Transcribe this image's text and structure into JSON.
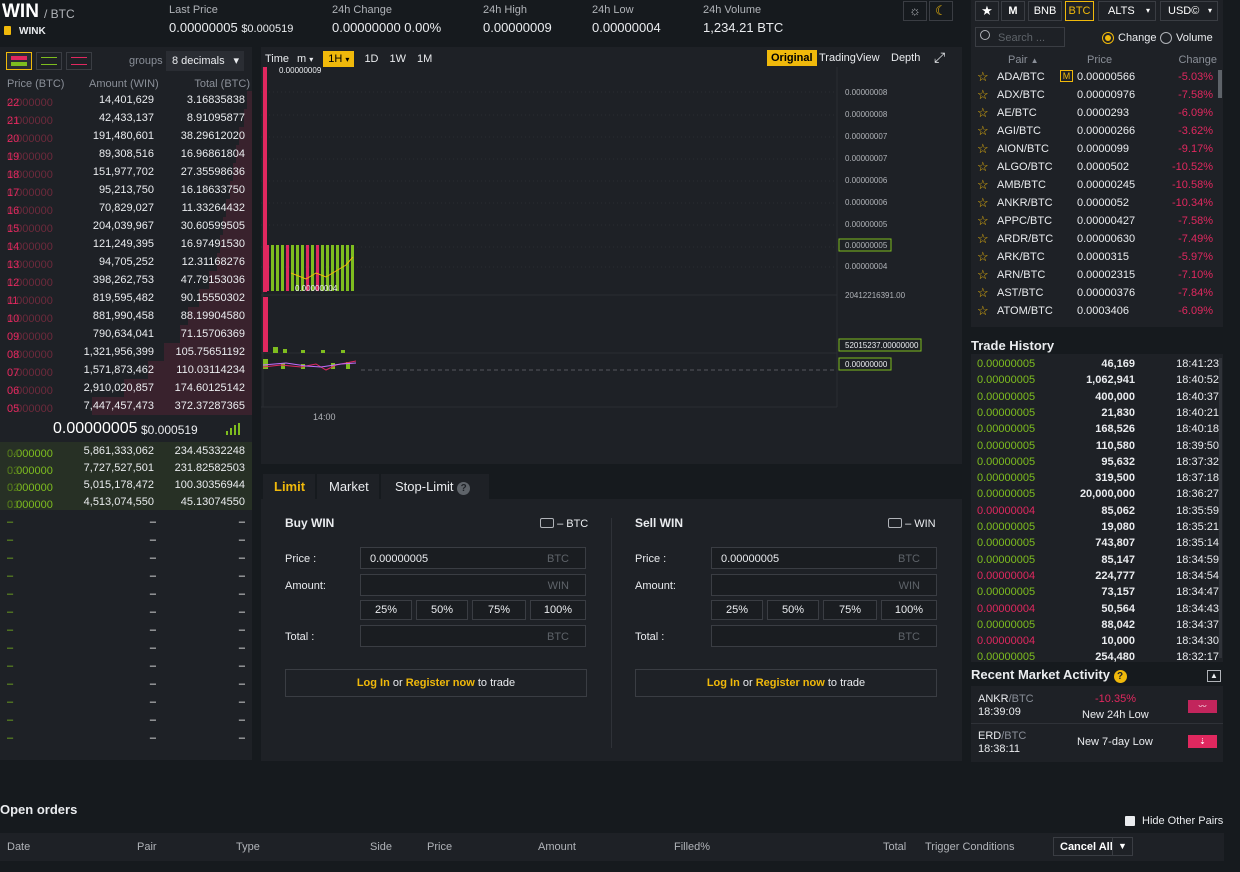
{
  "header": {
    "pair": "WIN",
    "quote": "/ BTC",
    "token_name": "WINK",
    "stats": [
      {
        "label": "Last Price",
        "value": "0.00000005",
        "extra": "$0.000519"
      },
      {
        "label": "24h Change",
        "value": "0.00000000 0.00%"
      },
      {
        "label": "24h High",
        "value": "0.00000009"
      },
      {
        "label": "24h Low",
        "value": "0.00000004"
      },
      {
        "label": "24h Volume",
        "value": "1,234.21 BTC"
      }
    ]
  },
  "orderbook": {
    "groups_label": "groups",
    "groups_value": "8 decimals",
    "columns": [
      "Price (BTC)",
      "Amount (WIN)",
      "Total (BTC)"
    ],
    "asks": [
      {
        "p1": "0.000000",
        "p2": "22",
        "a": "14,401,629",
        "t": "3.16835838",
        "d": 0.03
      },
      {
        "p1": "0.000000",
        "p2": "21",
        "a": "42,433,137",
        "t": "8.91095877",
        "d": 0.05
      },
      {
        "p1": "0.000000",
        "p2": "20",
        "a": "191,480,601",
        "t": "38.29612020",
        "d": 0.08
      },
      {
        "p1": "0.000000",
        "p2": "19",
        "a": "89,308,516",
        "t": "16.96861804",
        "d": 0.1
      },
      {
        "p1": "0.000000",
        "p2": "18",
        "a": "151,977,702",
        "t": "27.35598636",
        "d": 0.12
      },
      {
        "p1": "0.000000",
        "p2": "17",
        "a": "95,213,750",
        "t": "16.18633750",
        "d": 0.14
      },
      {
        "p1": "0.000000",
        "p2": "16",
        "a": "70,829,027",
        "t": "11.33264432",
        "d": 0.16
      },
      {
        "p1": "0.000000",
        "p2": "15",
        "a": "204,039,967",
        "t": "30.60599505",
        "d": 0.18
      },
      {
        "p1": "0.000000",
        "p2": "14",
        "a": "121,249,395",
        "t": "16.97491530",
        "d": 0.2
      },
      {
        "p1": "0.000000",
        "p2": "13",
        "a": "94,705,252",
        "t": "12.31168276",
        "d": 0.22
      },
      {
        "p1": "0.000000",
        "p2": "12",
        "a": "398,262,753",
        "t": "47.79153036",
        "d": 0.27
      },
      {
        "p1": "0.000000",
        "p2": "11",
        "a": "819,595,482",
        "t": "90.15550302",
        "d": 0.33
      },
      {
        "p1": "0.000000",
        "p2": "10",
        "a": "881,990,458",
        "t": "88.19904580",
        "d": 0.4
      },
      {
        "p1": "0.000000",
        "p2": "09",
        "a": "790,634,041",
        "t": "71.15706369",
        "d": 0.45
      },
      {
        "p1": "0.000000",
        "p2": "08",
        "a": "1,321,956,399",
        "t": "105.75651192",
        "d": 0.55
      },
      {
        "p1": "0.000000",
        "p2": "07",
        "a": "1,571,873,462",
        "t": "110.03114234",
        "d": 0.65
      },
      {
        "p1": "0.000000",
        "p2": "06",
        "a": "2,910,020,857",
        "t": "174.60125142",
        "d": 0.8
      },
      {
        "p1": "0.000000",
        "p2": "05",
        "a": "7,447,457,473",
        "t": "372.37287365",
        "d": 1.0
      }
    ],
    "mid_price": "0.00000005",
    "mid_usd": "$0.000519",
    "bids": [
      {
        "p1": "0.000000",
        "p2": "04",
        "a": "5,861,333,062",
        "t": "234.45332248",
        "d": 1.0
      },
      {
        "p1": "0.000000",
        "p2": "03",
        "a": "7,727,527,501",
        "t": "231.82582503",
        "d": 1.0
      },
      {
        "p1": "0.000000",
        "p2": "02",
        "a": "5,015,178,472",
        "t": "100.30356944",
        "d": 1.0
      },
      {
        "p1": "0.000000",
        "p2": "01",
        "a": "4,513,074,550",
        "t": "45.13074550",
        "d": 1.0
      }
    ],
    "dash": "–"
  },
  "chart": {
    "tabs": [
      "Time",
      "m",
      "1H",
      "1D",
      "1W",
      "1M"
    ],
    "views": [
      "Original",
      "TradingView",
      "Depth"
    ],
    "price_ticks": [
      "0.00000008",
      "0.00000008",
      "0.00000007",
      "0.00000007",
      "0.00000006",
      "0.00000006",
      "0.00000005",
      "0.00000005",
      "0.00000004"
    ],
    "high_label": "0.00000009",
    "low_label": "0.00000004",
    "vol_tick": "20412216391.00",
    "vol_label": "52015237.00000000",
    "macd_label": "0.00000000",
    "time_label": "14:00"
  },
  "form": {
    "tabs": [
      "Limit",
      "Market",
      "Stop-Limit"
    ],
    "buy": {
      "title": "Buy WIN",
      "wallet": "– BTC",
      "price_value": "0.00000005",
      "price_unit": "BTC",
      "amount_unit": "WIN",
      "total_unit": "BTC"
    },
    "sell": {
      "title": "Sell WIN",
      "wallet": "– WIN",
      "price_value": "0.00000005",
      "price_unit": "BTC",
      "amount_unit": "WIN",
      "total_unit": "BTC"
    },
    "price_label": "Price :",
    "amount_label": "Amount:",
    "total_label": "Total :",
    "pcts": [
      "25%",
      "50%",
      "75%",
      "100%"
    ],
    "login": "Log In",
    "or": "or",
    "register": "Register now",
    "to_trade": "to trade"
  },
  "market": {
    "tabs": [
      "BNB",
      "BTC",
      "ALTS",
      "USD©"
    ],
    "search_placeholder": "Search ...",
    "radio": [
      "Change",
      "Volume"
    ],
    "columns": [
      "Pair",
      "Price",
      "Change"
    ],
    "pairs": [
      {
        "pair": "ADA/BTC",
        "price": "0.00000566",
        "change": "-5.03%",
        "m": true
      },
      {
        "pair": "ADX/BTC",
        "price": "0.00000976",
        "change": "-7.58%"
      },
      {
        "pair": "AE/BTC",
        "price": "0.0000293",
        "change": "-6.09%"
      },
      {
        "pair": "AGI/BTC",
        "price": "0.00000266",
        "change": "-3.62%"
      },
      {
        "pair": "AION/BTC",
        "price": "0.0000099",
        "change": "-9.17%"
      },
      {
        "pair": "ALGO/BTC",
        "price": "0.0000502",
        "change": "-10.52%"
      },
      {
        "pair": "AMB/BTC",
        "price": "0.00000245",
        "change": "-10.58%"
      },
      {
        "pair": "ANKR/BTC",
        "price": "0.0000052",
        "change": "-10.34%"
      },
      {
        "pair": "APPC/BTC",
        "price": "0.00000427",
        "change": "-7.58%"
      },
      {
        "pair": "ARDR/BTC",
        "price": "0.00000630",
        "change": "-7.49%"
      },
      {
        "pair": "ARK/BTC",
        "price": "0.0000315",
        "change": "-5.97%"
      },
      {
        "pair": "ARN/BTC",
        "price": "0.00002315",
        "change": "-7.10%"
      },
      {
        "pair": "AST/BTC",
        "price": "0.00000376",
        "change": "-7.84%"
      },
      {
        "pair": "ATOM/BTC",
        "price": "0.0003406",
        "change": "-6.09%"
      }
    ],
    "m_badge": "M"
  },
  "trades": {
    "title": "Trade History",
    "rows": [
      {
        "p": "0.00000005",
        "a": "46,169",
        "t": "18:41:23",
        "s": "g"
      },
      {
        "p": "0.00000005",
        "a": "1,062,941",
        "t": "18:40:52",
        "s": "g"
      },
      {
        "p": "0.00000005",
        "a": "400,000",
        "t": "18:40:37",
        "s": "g"
      },
      {
        "p": "0.00000005",
        "a": "21,830",
        "t": "18:40:21",
        "s": "g"
      },
      {
        "p": "0.00000005",
        "a": "168,526",
        "t": "18:40:18",
        "s": "g"
      },
      {
        "p": "0.00000005",
        "a": "110,580",
        "t": "18:39:50",
        "s": "g"
      },
      {
        "p": "0.00000005",
        "a": "95,632",
        "t": "18:37:32",
        "s": "g"
      },
      {
        "p": "0.00000005",
        "a": "319,500",
        "t": "18:37:18",
        "s": "g"
      },
      {
        "p": "0.00000005",
        "a": "20,000,000",
        "t": "18:36:27",
        "s": "g"
      },
      {
        "p": "0.00000004",
        "a": "85,062",
        "t": "18:35:59",
        "s": "r"
      },
      {
        "p": "0.00000005",
        "a": "19,080",
        "t": "18:35:21",
        "s": "g"
      },
      {
        "p": "0.00000005",
        "a": "743,807",
        "t": "18:35:14",
        "s": "g"
      },
      {
        "p": "0.00000005",
        "a": "85,147",
        "t": "18:34:59",
        "s": "g"
      },
      {
        "p": "0.00000004",
        "a": "224,777",
        "t": "18:34:54",
        "s": "r"
      },
      {
        "p": "0.00000005",
        "a": "73,157",
        "t": "18:34:47",
        "s": "g"
      },
      {
        "p": "0.00000004",
        "a": "50,564",
        "t": "18:34:43",
        "s": "r"
      },
      {
        "p": "0.00000005",
        "a": "88,042",
        "t": "18:34:37",
        "s": "g"
      },
      {
        "p": "0.00000004",
        "a": "10,000",
        "t": "18:34:30",
        "s": "r"
      },
      {
        "p": "0.00000005",
        "a": "254,480",
        "t": "18:32:17",
        "s": "g"
      }
    ]
  },
  "recent": {
    "title": "Recent Market Activity",
    "items": [
      {
        "base": "ANKR",
        "quote": "/BTC",
        "time": "18:39:09",
        "change": "-10.35%",
        "desc": "New 24h Low"
      },
      {
        "base": "ERD",
        "quote": "/BTC",
        "time": "18:38:11",
        "change": "",
        "desc": "New 7-day Low"
      }
    ]
  },
  "orders": {
    "title": "Open orders",
    "hide_label": "Hide Other Pairs",
    "columns": [
      "Date",
      "Pair",
      "Type",
      "Side",
      "Price",
      "Amount",
      "Filled%",
      "Total",
      "Trigger Conditions"
    ],
    "cancel_all": "Cancel All"
  },
  "colors": {
    "green": "#7ebd1f",
    "red": "#e0285f",
    "accent": "#f0b90b"
  }
}
